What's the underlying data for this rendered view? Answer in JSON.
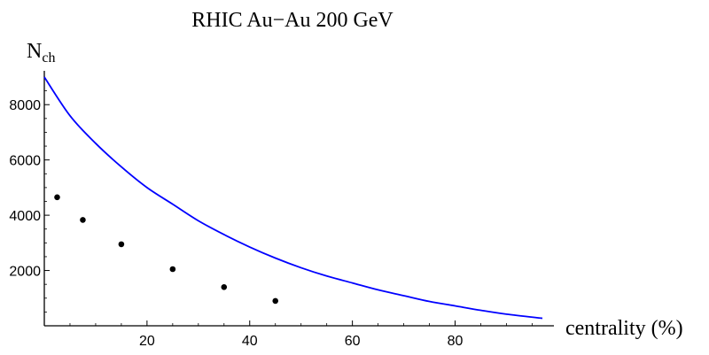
{
  "chart_data": {
    "type": "line",
    "title": "RHIC Au−Au 200 GeV",
    "xlabel": "centrality (%)",
    "ylabel": {
      "main": "N",
      "sub": "ch"
    },
    "xlim": [
      0,
      97
    ],
    "ylim": [
      0,
      9000
    ],
    "x_ticks": [
      20,
      40,
      60,
      80
    ],
    "y_ticks": [
      2000,
      4000,
      6000,
      8000
    ],
    "grid": false,
    "series": [
      {
        "kind": "curve",
        "color": "#0000ff",
        "x": [
          0,
          5,
          10,
          15,
          20,
          25,
          30,
          35,
          40,
          45,
          50,
          55,
          60,
          65,
          70,
          75,
          80,
          85,
          90,
          97
        ],
        "y": [
          9000,
          7600,
          6600,
          5750,
          5000,
          4400,
          3800,
          3300,
          2850,
          2450,
          2100,
          1800,
          1550,
          1300,
          1090,
          880,
          720,
          560,
          420,
          270
        ]
      },
      {
        "kind": "points",
        "color": "#000000",
        "x": [
          2.5,
          7.5,
          15,
          25,
          35,
          45
        ],
        "y": [
          4650,
          3830,
          2950,
          2050,
          1400,
          900
        ]
      }
    ]
  }
}
